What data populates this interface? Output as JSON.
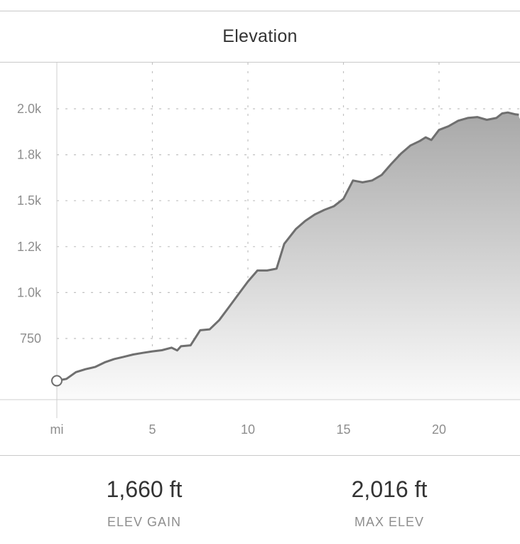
{
  "header": {
    "title": "Elevation"
  },
  "chart_data": {
    "type": "area",
    "title": "Elevation",
    "xlabel": "mi",
    "ylabel": "",
    "x_ticks": [
      {
        "value": 0,
        "label": "mi"
      },
      {
        "value": 5,
        "label": "5"
      },
      {
        "value": 10,
        "label": "10"
      },
      {
        "value": 15,
        "label": "15"
      },
      {
        "value": 20,
        "label": "20"
      }
    ],
    "y_ticks": [
      {
        "value": 750,
        "label": "750"
      },
      {
        "value": 1000,
        "label": "1.0k"
      },
      {
        "value": 1250,
        "label": "1.2k"
      },
      {
        "value": 1500,
        "label": "1.5k"
      },
      {
        "value": 1750,
        "label": "1.8k"
      },
      {
        "value": 2000,
        "label": "2.0k"
      }
    ],
    "xlim": [
      0,
      24.4
    ],
    "ylim": [
      410,
      2250
    ],
    "grid": true,
    "x": [
      0,
      0.5,
      1,
      1.5,
      2,
      2.5,
      3,
      3.5,
      4,
      4.5,
      5,
      5.5,
      6,
      6.3,
      6.5,
      7,
      7.5,
      8,
      8.5,
      9,
      9.5,
      10,
      10.5,
      11,
      11.5,
      11.9,
      12.5,
      13,
      13.5,
      14,
      14.5,
      15,
      15.5,
      16,
      16.5,
      17,
      17.5,
      18,
      18.5,
      19,
      19.3,
      19.6,
      20,
      20.5,
      21,
      21.5,
      22,
      22.5,
      23,
      23.3,
      23.6,
      24,
      24.4
    ],
    "y": [
      520,
      530,
      567,
      583,
      595,
      620,
      638,
      650,
      663,
      672,
      680,
      686,
      700,
      685,
      708,
      713,
      795,
      800,
      850,
      920,
      990,
      1060,
      1120,
      1120,
      1130,
      1265,
      1345,
      1390,
      1425,
      1450,
      1470,
      1510,
      1610,
      1600,
      1610,
      1640,
      1700,
      1755,
      1800,
      1825,
      1845,
      1830,
      1885,
      1905,
      1935,
      1950,
      1955,
      1940,
      1950,
      1975,
      1980,
      1970,
      1965
    ],
    "start_marker": {
      "x": 0,
      "y": 520
    },
    "end_marker": {
      "x": 24.4,
      "y": 1965
    }
  },
  "stats": [
    {
      "value": "1,660 ft",
      "label": "ELEV GAIN"
    },
    {
      "value": "2,016 ft",
      "label": "MAX ELEV"
    }
  ],
  "colors": {
    "line": "#6f6f6f",
    "fill_top": "#a8a8a8",
    "fill_bottom": "#fbfbfb",
    "grid": "#c2c2c2",
    "divider": "#c9c9c9"
  }
}
